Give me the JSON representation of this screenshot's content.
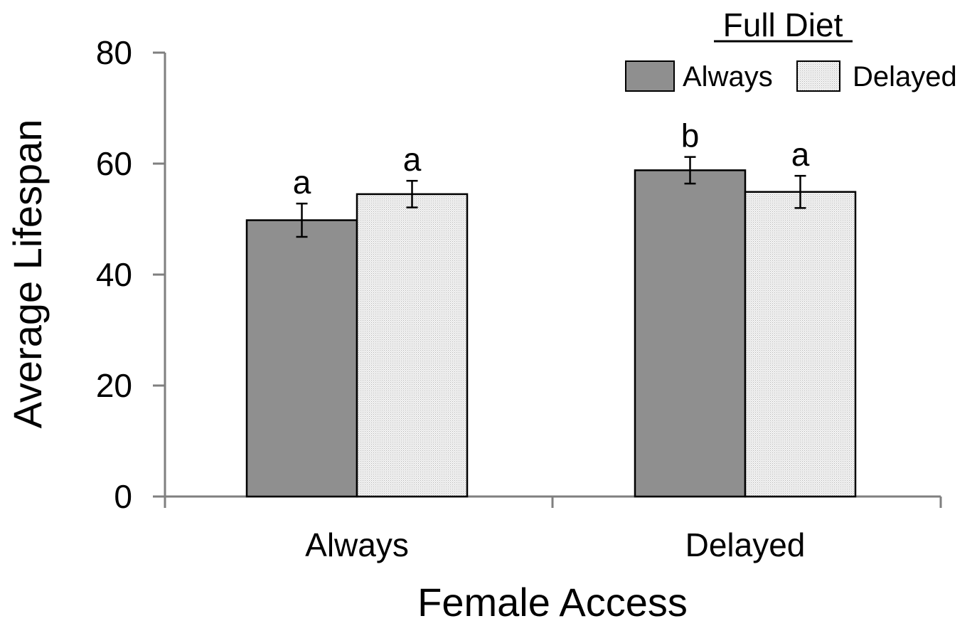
{
  "chart_data": {
    "type": "bar",
    "categories": [
      "Always",
      "Delayed"
    ],
    "series": [
      {
        "name": "Always",
        "values": [
          49.8,
          58.8
        ],
        "errors": [
          3.0,
          2.4
        ],
        "significance": [
          "a",
          "b"
        ]
      },
      {
        "name": "Delayed",
        "values": [
          54.5,
          54.9
        ],
        "errors": [
          2.4,
          2.9
        ],
        "significance": [
          "a",
          "a"
        ]
      }
    ],
    "xlabel": "Female Access",
    "ylabel": "Average Lifespan",
    "ylim": [
      0,
      80
    ],
    "yticks": [
      0,
      20,
      40,
      60,
      80
    ],
    "grid": false,
    "legend": {
      "title": "Full Diet",
      "placement": "top-right"
    },
    "colors": {
      "series_fill": [
        "#8f8f8f",
        "#ededed"
      ],
      "bar_stroke": "#000000",
      "axis": "#7f7f7f"
    }
  }
}
